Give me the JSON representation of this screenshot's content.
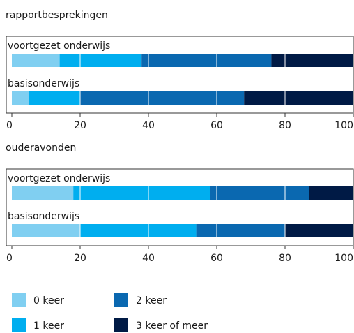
{
  "chart_data": [
    {
      "type": "bar",
      "orientation": "horizontal",
      "stacked": true,
      "title": "rapportbesprekingen",
      "categories": [
        "voortgezet onderwijs",
        "basisonderwijs"
      ],
      "series": [
        {
          "values": [
            14,
            5
          ]
        },
        {
          "values": [
            24,
            15
          ]
        },
        {
          "values": [
            38,
            48
          ]
        },
        {
          "values": [
            24,
            32
          ]
        }
      ],
      "xlim": [
        0,
        100
      ],
      "xticks": [
        0,
        20,
        40,
        60,
        80,
        100
      ],
      "grid": true
    },
    {
      "type": "bar",
      "orientation": "horizontal",
      "stacked": true,
      "title": "ouderavonden",
      "categories": [
        "voortgezet onderwijs",
        "basisonderwijs"
      ],
      "series": [
        {
          "values": [
            18,
            20
          ]
        },
        {
          "values": [
            40,
            34
          ]
        },
        {
          "values": [
            29,
            26
          ]
        },
        {
          "values": [
            13,
            20
          ]
        }
      ],
      "xlim": [
        0,
        100
      ],
      "xticks": [
        0,
        20,
        40,
        60,
        80,
        100
      ],
      "grid": true
    }
  ],
  "legend": [
    {
      "name": "0 keer",
      "color": "#80cff1"
    },
    {
      "name": "1 keer",
      "color": "#00aeef"
    },
    {
      "name": "2 keer",
      "color": "#0a68b0"
    },
    {
      "name": "3 keer of meer",
      "color": "#001a45"
    }
  ]
}
